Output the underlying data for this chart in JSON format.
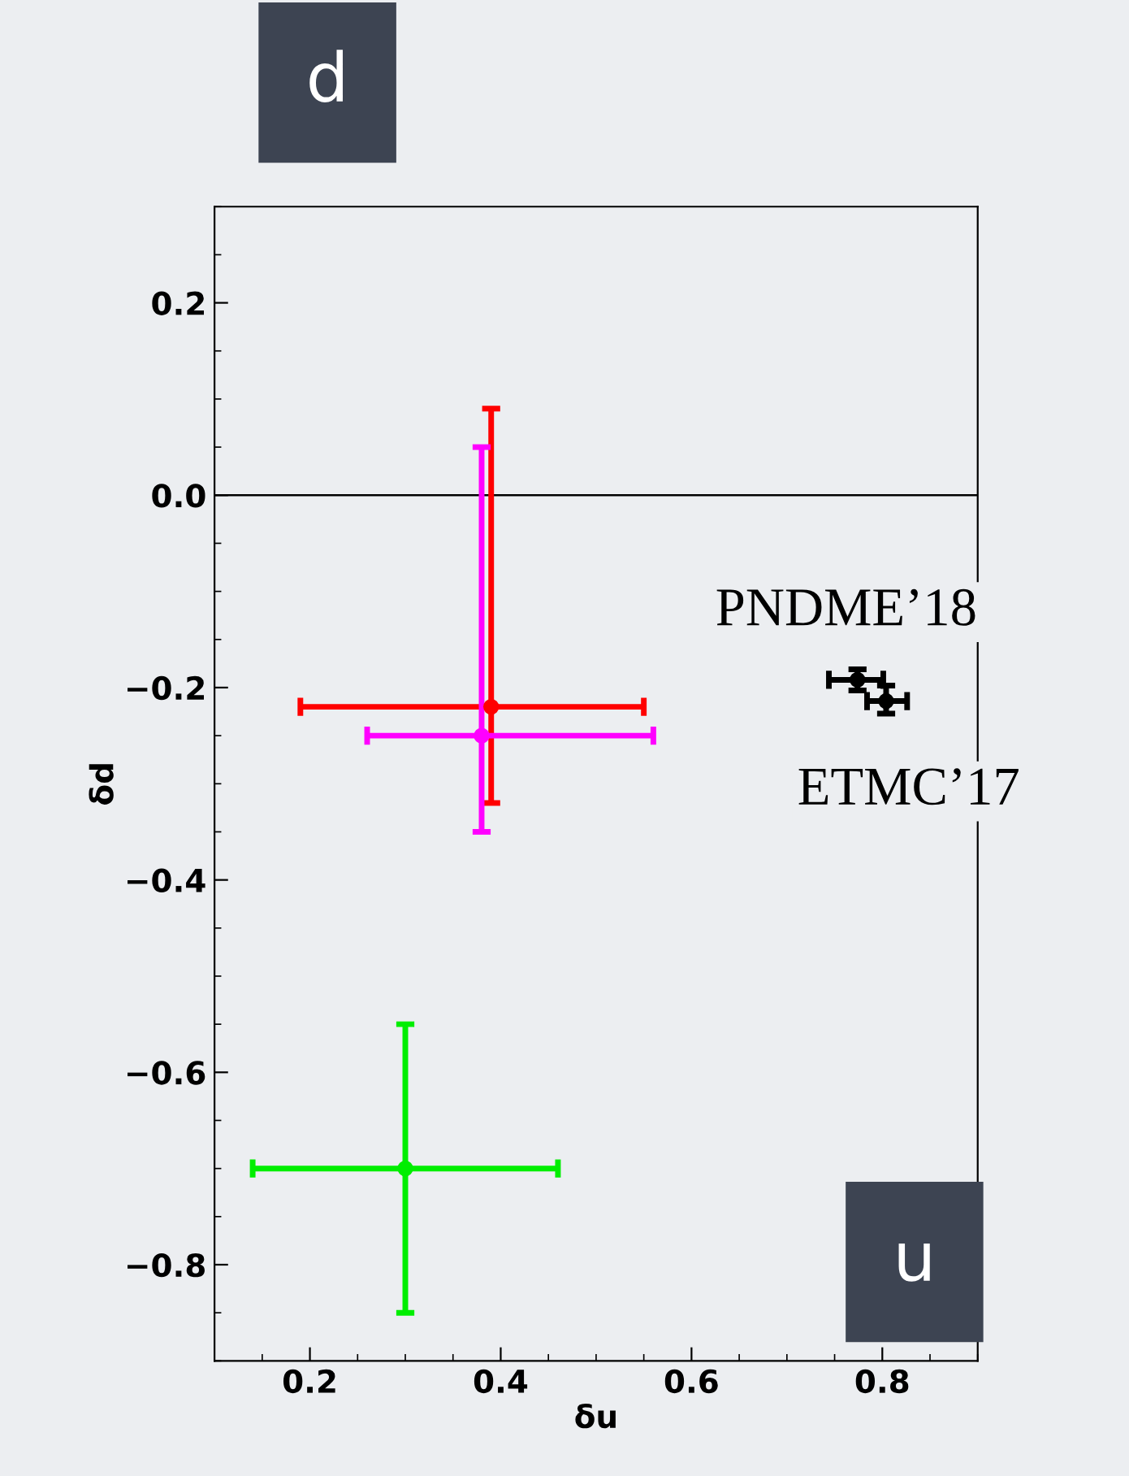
{
  "chart_data": {
    "type": "scatter",
    "xlabel": "δu",
    "ylabel": "δd",
    "xlim": [
      0.1,
      0.9
    ],
    "ylim": [
      -0.9,
      0.3
    ],
    "xticks": [
      0.2,
      0.4,
      0.6,
      0.8
    ],
    "yticks": [
      -0.8,
      -0.6,
      -0.4,
      -0.2,
      {
        "value": 0,
        "label": "0.0"
      },
      0.2
    ],
    "marker": "circle",
    "grid": false,
    "legend": false,
    "ref_lines": [
      {
        "axis": "y",
        "value": 0,
        "color": "#000000"
      }
    ],
    "series": [
      {
        "color": "#ff0000",
        "x": [
          0.39
        ],
        "values": [
          -0.22
        ],
        "xerrors": [
          [
            0.19,
            0.55
          ]
        ],
        "errors": [
          [
            -0.32,
            0.09
          ]
        ]
      },
      {
        "color": "#ff00ff",
        "x": [
          0.38
        ],
        "values": [
          -0.25
        ],
        "xerrors": [
          [
            0.26,
            0.56
          ]
        ],
        "errors": [
          [
            -0.35,
            0.05
          ]
        ]
      },
      {
        "color": "#00ee00",
        "x": [
          0.3
        ],
        "values": [
          -0.7
        ],
        "xerrors": [
          [
            0.14,
            0.46
          ]
        ],
        "errors": [
          [
            -0.85,
            -0.55
          ]
        ]
      },
      {
        "color": "#000000",
        "x": [
          0.774,
          0.804
        ],
        "values": [
          -0.192,
          -0.214
        ],
        "xerrors": [
          [
            0.744,
            0.801
          ],
          [
            0.784,
            0.826
          ]
        ],
        "errors": [
          [
            -0.203,
            -0.181
          ],
          [
            -0.227,
            -0.198
          ]
        ]
      }
    ],
    "annotations": [
      {
        "text": "PNDME’18",
        "x": 0.774,
        "y": -0.192
      },
      {
        "text": "ETMC’17",
        "x": 0.804,
        "y": -0.214
      },
      "d",
      "u"
    ]
  }
}
